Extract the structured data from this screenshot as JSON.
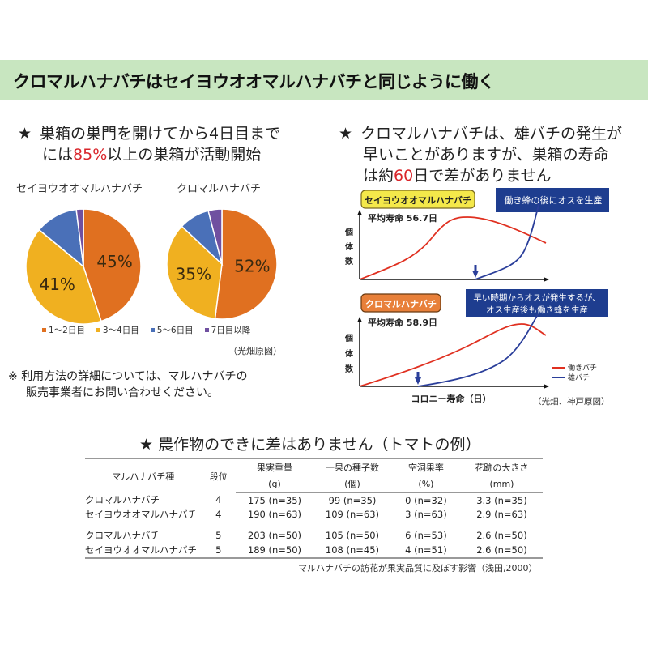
{
  "banner": {
    "title": "クロマルハナバチはセイヨウオオマルハナバチと同じように働く"
  },
  "left": {
    "star": "★",
    "headline_line1": "巣箱の巣門を開けてから4日目まで",
    "headline_line2_pre": "には",
    "headline_line2_red": "85%",
    "headline_line2_post": "以上の巣箱が活動開始",
    "pie1_label": "セイヨウオオマルハナバチ",
    "pie2_label": "クロマルハナバチ",
    "legend": [
      {
        "label": "1〜2日目",
        "color": "#e07020"
      },
      {
        "label": "3〜4日目",
        "color": "#f0b020"
      },
      {
        "label": "5〜6日目",
        "color": "#4a70b8"
      },
      {
        "label": "7日目以降",
        "color": "#7050a0"
      }
    ],
    "credit": "（光畑原図）",
    "note_mark": "※",
    "note_line1": "利用方法の詳細については、マルハナバチの",
    "note_line2": "販売事業者にお問い合わせください。"
  },
  "right": {
    "star": "★",
    "headline_line1": "クロマルハナバチは、雄バチの発生が",
    "headline_line2": "早いことがありますが、巣箱の寿命",
    "headline_line3_pre": "は約",
    "headline_line3_red": "60",
    "headline_line3_post": "日で差がありません",
    "chart1_species": "セイヨウオオマルハナバチ",
    "chart1_lifespan": "平均寿命 56.7日",
    "chart1_note": "働き蜂の後にオスを生産",
    "chart2_species": "クロマルハナバチ",
    "chart2_lifespan": "平均寿命 58.9日",
    "chart2_note_line1": "早い時期からオスが発生するが、",
    "chart2_note_line2": "オス生産後も働き蜂を生産",
    "ylabel": "個体数",
    "ylabel_chars": [
      "個",
      "体",
      "数"
    ],
    "xlabel": "コロニー寿命（日）",
    "legend_worker": "働きバチ",
    "legend_male": "雄バチ",
    "credit": "（光畑、神戸原図）"
  },
  "tomato": {
    "title": "★ 農作物のできに差はありません（トマトの例）",
    "headers": [
      {
        "label": "マルハナバチ種",
        "unit": ""
      },
      {
        "label": "段位",
        "unit": ""
      },
      {
        "label": "果実重量",
        "unit": "(g)"
      },
      {
        "label": "一果の種子数",
        "unit": "(個)"
      },
      {
        "label": "空洞果率",
        "unit": "(%)"
      },
      {
        "label": "花跡の大きさ",
        "unit": "(mm)"
      }
    ],
    "rows": [
      [
        "クロマルハナバチ",
        "4",
        "175 (n=35)",
        "99 (n=35)",
        "0 (n=32)",
        "3.3 (n=35)"
      ],
      [
        "セイヨウオオマルハナバチ",
        "4",
        "190 (n=63)",
        "109 (n=63)",
        "3 (n=63)",
        "2.9 (n=63)"
      ],
      [
        "クロマルハナバチ",
        "5",
        "203 (n=50)",
        "105 (n=50)",
        "6 (n=53)",
        "2.6 (n=50)"
      ],
      [
        "セイヨウオオマルハナバチ",
        "5",
        "189 (n=50)",
        "108 (n=45)",
        "4 (n=51)",
        "2.6 (n=50)"
      ]
    ],
    "caption": "マルハナバチの訪花が果実品質に及ぼす影響（浅田,2000）"
  },
  "chart_data": [
    {
      "type": "pie",
      "title": "セイヨウオオマルハナバチ",
      "categories": [
        "1〜2日目",
        "3〜4日目",
        "5〜6日目",
        "7日目以降"
      ],
      "values": [
        45,
        41,
        12,
        2
      ],
      "labels_shown": [
        "45%",
        "41%",
        "",
        ""
      ],
      "colors": [
        "#e07020",
        "#f0b020",
        "#4a70b8",
        "#7050a0"
      ]
    },
    {
      "type": "pie",
      "title": "クロマルハナバチ",
      "categories": [
        "1〜2日目",
        "3〜4日目",
        "5〜6日目",
        "7日目以降"
      ],
      "values": [
        52,
        35,
        9,
        4
      ],
      "labels_shown": [
        "52%",
        "35%",
        "",
        ""
      ],
      "colors": [
        "#e07020",
        "#f0b020",
        "#4a70b8",
        "#7050a0"
      ]
    },
    {
      "type": "line",
      "title": "セイヨウオオマルハナバチ 平均寿命 56.7日",
      "xlabel": "コロニー寿命（日）",
      "ylabel": "個体数",
      "annotation": "働き蜂の後にオスを生産",
      "series": [
        {
          "name": "働きバチ",
          "color": "#e03020",
          "shape": "rises to peak at ~55% of time, gently declines"
        },
        {
          "name": "雄バチ",
          "color": "#2a3e9a",
          "shape": "starts at ~62% of time (arrow), rises sharply at end"
        }
      ]
    },
    {
      "type": "line",
      "title": "クロマルハナバチ 平均寿命 58.9日",
      "xlabel": "コロニー寿命（日）",
      "ylabel": "個体数",
      "annotation": "早い時期からオスが発生するが、オス生産後も働き蜂を生産",
      "series": [
        {
          "name": "働きバチ",
          "color": "#e03020",
          "shape": "gradual rise, peak at ~85% of time, slight decline"
        },
        {
          "name": "雄バチ",
          "color": "#2a3e9a",
          "shape": "starts early at ~31% of time (arrow), rises steeply at end"
        }
      ]
    },
    {
      "type": "table",
      "title": "農作物のできに差はありません（トマトの例）",
      "columns": [
        "マルハナバチ種",
        "段位",
        "果実重量 (g)",
        "一果の種子数 (個)",
        "空洞果率 (%)",
        "花跡の大きさ (mm)"
      ],
      "rows": [
        [
          "クロマルハナバチ",
          4,
          175,
          99,
          0,
          3.3
        ],
        [
          "セイヨウオオマルハナバチ",
          4,
          190,
          109,
          3,
          2.9
        ],
        [
          "クロマルハナバチ",
          5,
          203,
          105,
          6,
          2.6
        ],
        [
          "セイヨウオオマルハナバチ",
          5,
          189,
          108,
          4,
          2.6
        ]
      ]
    }
  ]
}
